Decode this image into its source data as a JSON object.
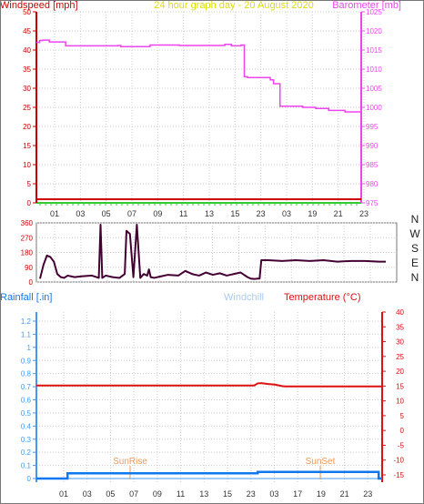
{
  "colors": {
    "windspeed": "#cc0000",
    "barometer": "#ee44ee",
    "title": "#dddd00",
    "direction": "#440033",
    "rainfall": "#1177ee",
    "windchill": "#aaccee",
    "temperature": "#dd1111",
    "sun": "#ee9955",
    "grid": "#cccccc",
    "green": "#33cc33",
    "blue_axis": "#4499ee",
    "frame": "#777777"
  },
  "top_chart": {
    "title": "24 hour graph day - 20 August 2020",
    "left_label": "Windspeed [mph]",
    "right_label": "Barometer [mb]",
    "left_ticks": [
      "50",
      "45",
      "40",
      "35",
      "30",
      "25",
      "20",
      "15",
      "10",
      "5",
      "0"
    ],
    "right_ticks": [
      "1025",
      "1020",
      "1015",
      "1010",
      "1005",
      "1000",
      "995",
      "990",
      "985",
      "980",
      "975"
    ],
    "x_ticks": [
      "01",
      "03",
      "05",
      "07",
      "09",
      "11",
      "13",
      "15",
      "23",
      "03",
      "19",
      "21",
      "23"
    ]
  },
  "dir_chart": {
    "left_ticks": [
      "360",
      "270",
      "180",
      "90",
      "0"
    ],
    "right_labels": [
      "N",
      "W",
      "S",
      "E",
      "N"
    ]
  },
  "bottom_chart": {
    "left_label": "Rainfall [.in]",
    "middle_label": "Windchill",
    "right_label": "Temperature (°C)",
    "left_ticks": [
      "1.2",
      "1.1",
      "1",
      "0.9",
      "0.8",
      "0.7",
      "0.6",
      "0.5",
      "0.4",
      "0.3",
      "0.2",
      "0.1",
      "0"
    ],
    "right_ticks": [
      "40",
      "35",
      "30",
      "25",
      "20",
      "15",
      "10",
      "5",
      "0",
      "-5",
      "-10",
      "-15"
    ],
    "x_ticks": [
      "01",
      "03",
      "05",
      "07",
      "09",
      "11",
      "13",
      "15",
      "23",
      "03",
      "17",
      "19",
      "21",
      "23"
    ],
    "sunrise_label": "SunRise",
    "sunset_label": "SunSet"
  },
  "chart_data": [
    {
      "type": "line",
      "title": "24 hour graph day - 20 August 2020",
      "ylabel": "Windspeed [mph]",
      "ylabel_right": "Barometer [mb]",
      "ylim": [
        0,
        50
      ],
      "ylim_right": [
        975,
        1025
      ],
      "series": [
        {
          "name": "Windspeed [mph]",
          "axis": "left",
          "x": [
            0,
            100
          ],
          "y": [
            0,
            0
          ]
        },
        {
          "name": "Barometer [mb]",
          "axis": "right",
          "x": [
            0,
            1,
            2,
            4,
            9,
            25,
            26,
            35,
            44,
            51,
            58,
            60,
            63,
            64,
            65,
            72,
            73,
            75,
            82,
            86,
            90,
            95,
            100
          ],
          "y": [
            1017,
            1017.5,
            1017.6,
            1017.1,
            1016.1,
            1016.2,
            1015.9,
            1016.3,
            1016.2,
            1016.2,
            1016.5,
            1016.1,
            1016.3,
            1008,
            1007.8,
            1007.2,
            1006.2,
            1000.3,
            1000,
            999.7,
            999.2,
            998.8,
            997.8
          ]
        }
      ],
      "x_tick_labels": [
        "01",
        "03",
        "05",
        "07",
        "09",
        "11",
        "13",
        "15",
        "23",
        "03",
        "19",
        "21",
        "23"
      ]
    },
    {
      "type": "line",
      "ylabel": "",
      "ylim": [
        0,
        360
      ],
      "y_right_labels": [
        "N",
        "W",
        "S",
        "E",
        "N"
      ],
      "series": [
        {
          "name": "Wind direction",
          "x": [
            0,
            1,
            2,
            3,
            4,
            5,
            6,
            7,
            8,
            10,
            12,
            15,
            17,
            17.5,
            18,
            19,
            21,
            23,
            24.5,
            25,
            26,
            27,
            28,
            29,
            30,
            31,
            31.5,
            32,
            33,
            35,
            37,
            40,
            42,
            44,
            46,
            48,
            50,
            52,
            54,
            56,
            58,
            59,
            60,
            61,
            62,
            63,
            63.5,
            64,
            66,
            70,
            74,
            78,
            82,
            86,
            90,
            94,
            98,
            100
          ],
          "y": [
            10,
            100,
            160,
            150,
            120,
            40,
            20,
            15,
            30,
            20,
            25,
            30,
            15,
            360,
            15,
            30,
            20,
            15,
            40,
            320,
            300,
            20,
            360,
            15,
            40,
            30,
            70,
            20,
            15,
            25,
            35,
            30,
            60,
            40,
            30,
            50,
            35,
            45,
            30,
            40,
            50,
            35,
            20,
            10,
            8,
            10,
            10,
            130,
            130,
            125,
            130,
            125,
            130,
            120,
            125,
            125,
            120,
            120
          ]
        }
      ]
    },
    {
      "type": "line",
      "ylabel": "Rainfall [.in]",
      "ylabel_right": "Temperature (°C)",
      "ylim": [
        0,
        1.2
      ],
      "ylim_right": [
        -15,
        40
      ],
      "series": [
        {
          "name": "Rainfall [.in]",
          "axis": "left",
          "x": [
            0,
            8,
            9,
            63,
            64,
            98,
            99,
            100
          ],
          "y": [
            0,
            0,
            0.04,
            0.04,
            0.05,
            0.05,
            0,
            0
          ]
        },
        {
          "name": "Temperature (°C)",
          "axis": "right",
          "x": [
            0,
            63,
            64,
            65,
            67,
            69,
            71,
            72,
            100
          ],
          "y": [
            15.2,
            15.2,
            15.9,
            16.0,
            15.7,
            15.5,
            15.0,
            14.9,
            14.9
          ]
        },
        {
          "name": "Windchill",
          "axis": "right",
          "x": [],
          "y": []
        }
      ],
      "x_tick_labels": [
        "01",
        "03",
        "05",
        "07",
        "09",
        "11",
        "13",
        "15",
        "23",
        "03",
        "17",
        "19",
        "21",
        "23"
      ],
      "annotations": [
        "SunRise",
        "SunSet"
      ]
    }
  ]
}
